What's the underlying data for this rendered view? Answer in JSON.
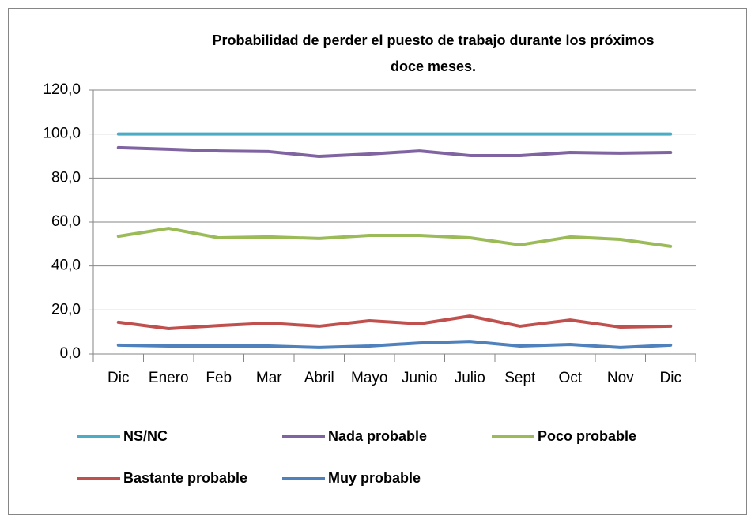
{
  "chart_data": {
    "type": "line",
    "title": [
      "Probabilidad de perder  el  puesto de trabajo durante los próximos",
      "doce meses."
    ],
    "categories": [
      "Dic",
      "Enero",
      "Feb",
      "Mar",
      "Abril",
      "Mayo",
      "Junio",
      "Julio",
      "Sept",
      "Oct",
      "Nov",
      "Dic"
    ],
    "series": [
      {
        "name": "NS/NC",
        "color": "#4bacc6",
        "values": [
          100,
          100,
          100,
          100,
          100,
          100,
          100,
          100,
          100,
          100,
          100,
          100
        ]
      },
      {
        "name": "Nada probable",
        "color": "#8064a2",
        "values": [
          93.8,
          93.1,
          92.3,
          92.0,
          89.8,
          90.9,
          92.3,
          90.2,
          90.2,
          91.6,
          91.3,
          91.6
        ]
      },
      {
        "name": "Poco probable",
        "color": "#9bbb59",
        "values": [
          53.5,
          57.1,
          52.8,
          53.2,
          52.5,
          53.9,
          53.9,
          52.8,
          49.6,
          53.2,
          52.1,
          48.9
        ]
      },
      {
        "name": "Bastante probable",
        "color": "#c0504d",
        "values": [
          14.4,
          11.5,
          12.9,
          14.0,
          12.6,
          15.1,
          13.7,
          17.2,
          12.6,
          15.4,
          12.2,
          12.6
        ]
      },
      {
        "name": "Muy probable",
        "color": "#4f81bd",
        "values": [
          4.0,
          3.6,
          3.6,
          3.6,
          2.9,
          3.6,
          5.0,
          5.7,
          3.6,
          4.3,
          2.9,
          4.0
        ]
      }
    ],
    "ylim": [
      0,
      120
    ],
    "yticks": [
      {
        "value": 0,
        "label": "0,0"
      },
      {
        "value": 20,
        "label": "20,0"
      },
      {
        "value": 40,
        "label": "40,0"
      },
      {
        "value": 60,
        "label": "60,0"
      },
      {
        "value": 80,
        "label": "80,0"
      },
      {
        "value": 100,
        "label": "100,0"
      },
      {
        "value": 120,
        "label": "120,0"
      }
    ],
    "grid": true,
    "legend": "bottom"
  }
}
